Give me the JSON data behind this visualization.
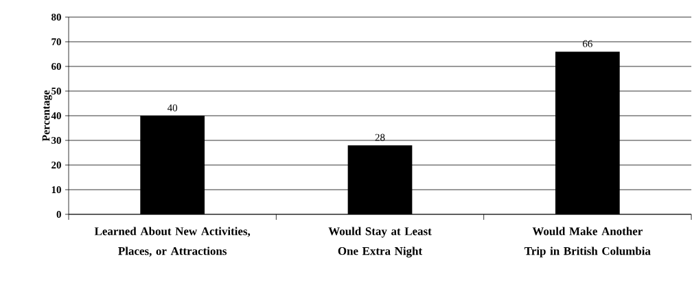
{
  "chart_data": {
    "type": "bar",
    "ylabel": "Percentage",
    "categories": [
      "Learned About New Activities, Places, or Attractions",
      "Would Stay at Least One Extra Night",
      "Would Make Another Trip in British Columbia"
    ],
    "values": [
      40,
      28,
      66
    ],
    "color": "#000000",
    "ylim": [
      0,
      80
    ],
    "yticks": [
      0,
      10,
      20,
      30,
      40,
      50,
      60,
      70,
      80
    ],
    "grid": "y",
    "data_labels": true
  }
}
